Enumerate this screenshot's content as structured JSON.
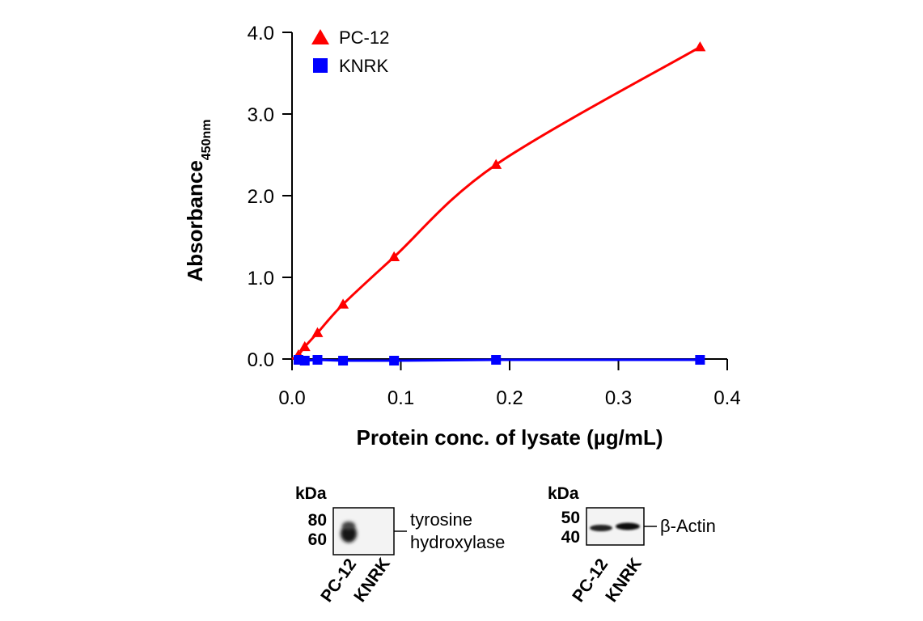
{
  "chart_data": {
    "type": "scatter",
    "title": "",
    "xlabel": "Protein conc. of lysate (µg/mL)",
    "ylabel_main": "Absorbance",
    "ylabel_sub": "450nm",
    "xlim": [
      0,
      0.4
    ],
    "ylim": [
      0,
      4
    ],
    "xticks": [
      "0.0",
      "0.1",
      "0.2",
      "0.3",
      "0.4"
    ],
    "yticks": [
      "0.0",
      "1.0",
      "2.0",
      "3.0",
      "4.0"
    ],
    "grid": false,
    "legend_position": "top-left",
    "series": [
      {
        "name": "PC-12",
        "color": "#ff0000",
        "marker": "triangle",
        "x": [
          0.0059,
          0.0117,
          0.0234,
          0.0469,
          0.0938,
          0.1875,
          0.375
        ],
        "y": [
          0.05,
          0.15,
          0.32,
          0.67,
          1.25,
          2.38,
          3.82
        ]
      },
      {
        "name": "KNRK",
        "color": "#0000ff",
        "marker": "square",
        "x": [
          0.0059,
          0.0117,
          0.0234,
          0.0469,
          0.0938,
          0.1875,
          0.375
        ],
        "y": [
          -0.01,
          -0.02,
          -0.01,
          -0.02,
          -0.02,
          -0.01,
          -0.01
        ]
      }
    ]
  },
  "blots": [
    {
      "kda_label": "kDa",
      "markers": [
        "80",
        "60"
      ],
      "target_line1": "tyrosine",
      "target_line2": "hydroxylase",
      "lanes": [
        "PC-12",
        "KNRK"
      ]
    },
    {
      "kda_label": "kDa",
      "markers": [
        "50",
        "40"
      ],
      "target_line1": "β-Actin",
      "lanes": [
        "PC-12",
        "KNRK"
      ]
    }
  ]
}
